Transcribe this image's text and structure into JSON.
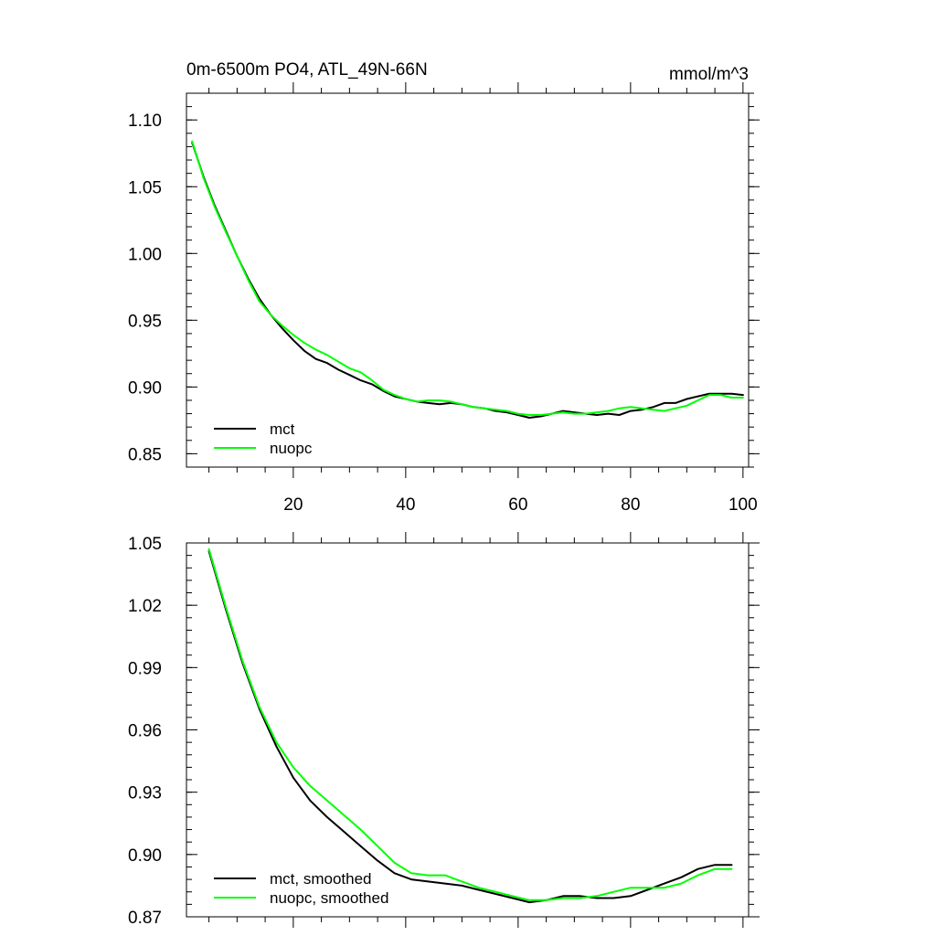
{
  "chart_data": [
    {
      "type": "line",
      "title": "0m-6500m PO4, ATL_49N-66N",
      "units": "mmol/m^3",
      "xlim": [
        1,
        101
      ],
      "ylim": [
        0.84,
        1.12
      ],
      "xticks": [
        20,
        40,
        60,
        80,
        100
      ],
      "xtick_labels": [
        "20",
        "40",
        "60",
        "80",
        "100"
      ],
      "yticks": [
        0.85,
        0.9,
        0.95,
        1.0,
        1.05,
        1.1
      ],
      "ytick_labels": [
        "0.85",
        "0.90",
        "0.95",
        "1.00",
        "1.05",
        "1.10"
      ],
      "legend_position": "bottom-left",
      "series": [
        {
          "name": "mct",
          "color": "#000000",
          "x": [
            2,
            4,
            6,
            8,
            10,
            12,
            14,
            16,
            18,
            20,
            22,
            24,
            26,
            28,
            30,
            32,
            34,
            36,
            38,
            40,
            42,
            44,
            46,
            48,
            50,
            52,
            54,
            56,
            58,
            60,
            62,
            64,
            66,
            68,
            70,
            72,
            74,
            76,
            78,
            80,
            82,
            84,
            86,
            88,
            90,
            92,
            94,
            96,
            98,
            100
          ],
          "y": [
            1.083,
            1.058,
            1.036,
            1.017,
            0.998,
            0.981,
            0.966,
            0.954,
            0.944,
            0.935,
            0.927,
            0.921,
            0.918,
            0.913,
            0.909,
            0.905,
            0.902,
            0.897,
            0.893,
            0.891,
            0.889,
            0.888,
            0.887,
            0.888,
            0.887,
            0.885,
            0.884,
            0.882,
            0.881,
            0.879,
            0.877,
            0.878,
            0.88,
            0.882,
            0.881,
            0.88,
            0.879,
            0.88,
            0.879,
            0.882,
            0.883,
            0.885,
            0.888,
            0.888,
            0.891,
            0.893,
            0.895,
            0.895,
            0.895,
            0.894
          ]
        },
        {
          "name": "nuopc",
          "color": "#00ff00",
          "x": [
            2,
            4,
            6,
            8,
            10,
            12,
            14,
            16,
            18,
            20,
            22,
            24,
            26,
            28,
            30,
            32,
            34,
            36,
            38,
            40,
            42,
            44,
            46,
            48,
            50,
            52,
            54,
            56,
            58,
            60,
            62,
            64,
            66,
            68,
            70,
            72,
            74,
            76,
            78,
            80,
            82,
            84,
            86,
            88,
            90,
            92,
            94,
            96,
            98,
            100
          ],
          "y": [
            1.084,
            1.057,
            1.035,
            1.016,
            0.998,
            0.98,
            0.964,
            0.954,
            0.946,
            0.939,
            0.933,
            0.928,
            0.924,
            0.919,
            0.914,
            0.911,
            0.905,
            0.898,
            0.894,
            0.891,
            0.889,
            0.89,
            0.89,
            0.889,
            0.887,
            0.885,
            0.884,
            0.883,
            0.882,
            0.88,
            0.879,
            0.879,
            0.88,
            0.881,
            0.88,
            0.88,
            0.881,
            0.882,
            0.884,
            0.885,
            0.884,
            0.883,
            0.882,
            0.884,
            0.886,
            0.89,
            0.894,
            0.894,
            0.892,
            0.892
          ]
        }
      ]
    },
    {
      "type": "line",
      "title": "",
      "xlim": [
        1,
        101
      ],
      "ylim": [
        0.87,
        1.05
      ],
      "xticks": [
        20,
        40,
        60,
        80,
        100
      ],
      "xtick_labels": [],
      "yticks": [
        0.87,
        0.9,
        0.93,
        0.96,
        0.99,
        1.02,
        1.05
      ],
      "ytick_labels": [
        "0.87",
        "0.90",
        "0.93",
        "0.96",
        "0.99",
        "1.02",
        "1.05"
      ],
      "legend_position": "bottom-left",
      "series": [
        {
          "name": "mct, smoothed",
          "color": "#000000",
          "x": [
            5,
            8,
            11,
            14,
            17,
            20,
            23,
            26,
            29,
            32,
            35,
            38,
            41,
            44,
            47,
            50,
            53,
            56,
            59,
            62,
            65,
            68,
            71,
            74,
            77,
            80,
            83,
            86,
            89,
            92,
            95,
            98
          ],
          "y": [
            1.046,
            1.018,
            0.992,
            0.97,
            0.952,
            0.937,
            0.926,
            0.918,
            0.911,
            0.904,
            0.897,
            0.891,
            0.888,
            0.887,
            0.886,
            0.885,
            0.883,
            0.881,
            0.879,
            0.877,
            0.878,
            0.88,
            0.88,
            0.879,
            0.879,
            0.88,
            0.883,
            0.886,
            0.889,
            0.893,
            0.895,
            0.895
          ]
        },
        {
          "name": "nuopc, smoothed",
          "color": "#00ff00",
          "x": [
            5,
            8,
            11,
            14,
            17,
            20,
            23,
            26,
            29,
            32,
            35,
            38,
            41,
            44,
            47,
            50,
            53,
            56,
            59,
            62,
            65,
            68,
            71,
            74,
            77,
            80,
            83,
            86,
            89,
            92,
            95,
            98
          ],
          "y": [
            1.047,
            1.019,
            0.993,
            0.971,
            0.954,
            0.942,
            0.933,
            0.926,
            0.919,
            0.912,
            0.904,
            0.896,
            0.891,
            0.89,
            0.89,
            0.887,
            0.884,
            0.882,
            0.88,
            0.878,
            0.878,
            0.879,
            0.879,
            0.88,
            0.882,
            0.884,
            0.884,
            0.884,
            0.886,
            0.89,
            0.893,
            0.893
          ]
        }
      ]
    }
  ]
}
